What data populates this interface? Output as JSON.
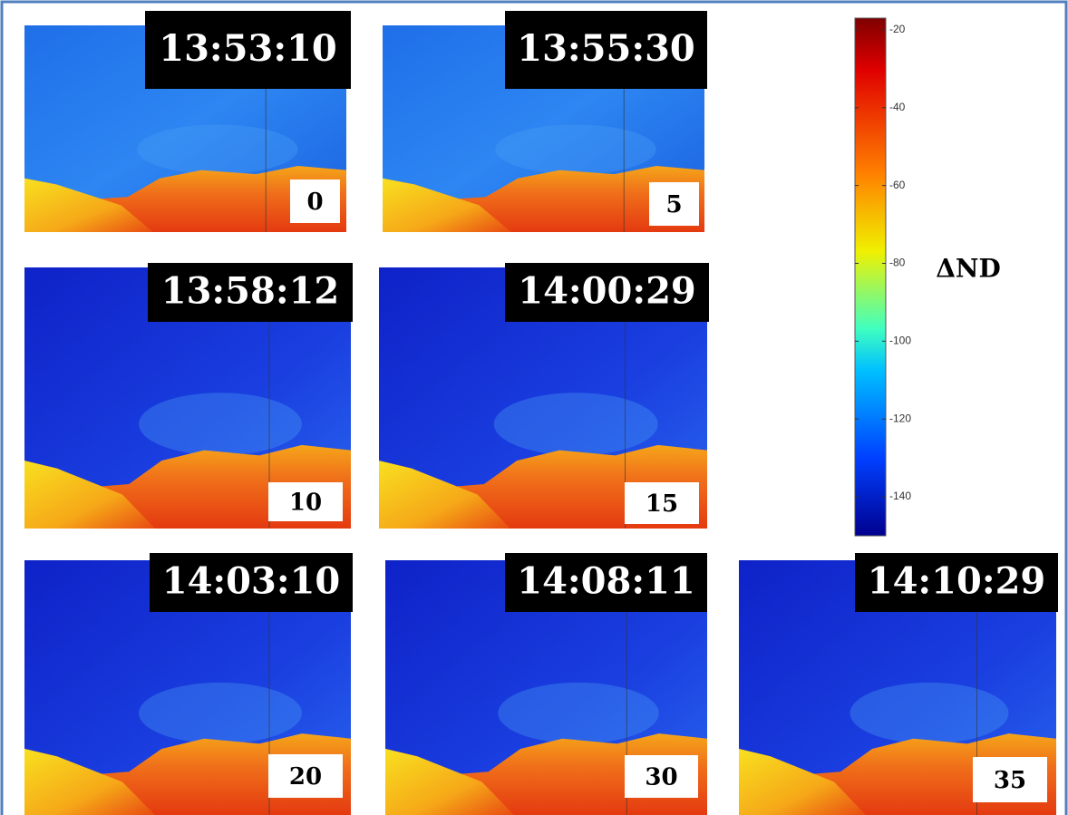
{
  "panels": [
    {
      "time": "13:53:10",
      "number": 0
    },
    {
      "time": "13:55:30",
      "number": 5
    },
    {
      "time": "13:58:12",
      "number": 10
    },
    {
      "time": "14:00:29",
      "number": 15
    },
    {
      "time": "14:03:10",
      "number": 20
    },
    {
      "time": "14:08:11",
      "number": 30
    },
    {
      "time": "14:10:29",
      "number": 35
    }
  ],
  "colorbar": {
    "label": "ΔND",
    "lim": [
      -150,
      -17
    ],
    "ticks": [
      -20,
      -40,
      -60,
      -80,
      -100,
      -120,
      -140
    ]
  }
}
